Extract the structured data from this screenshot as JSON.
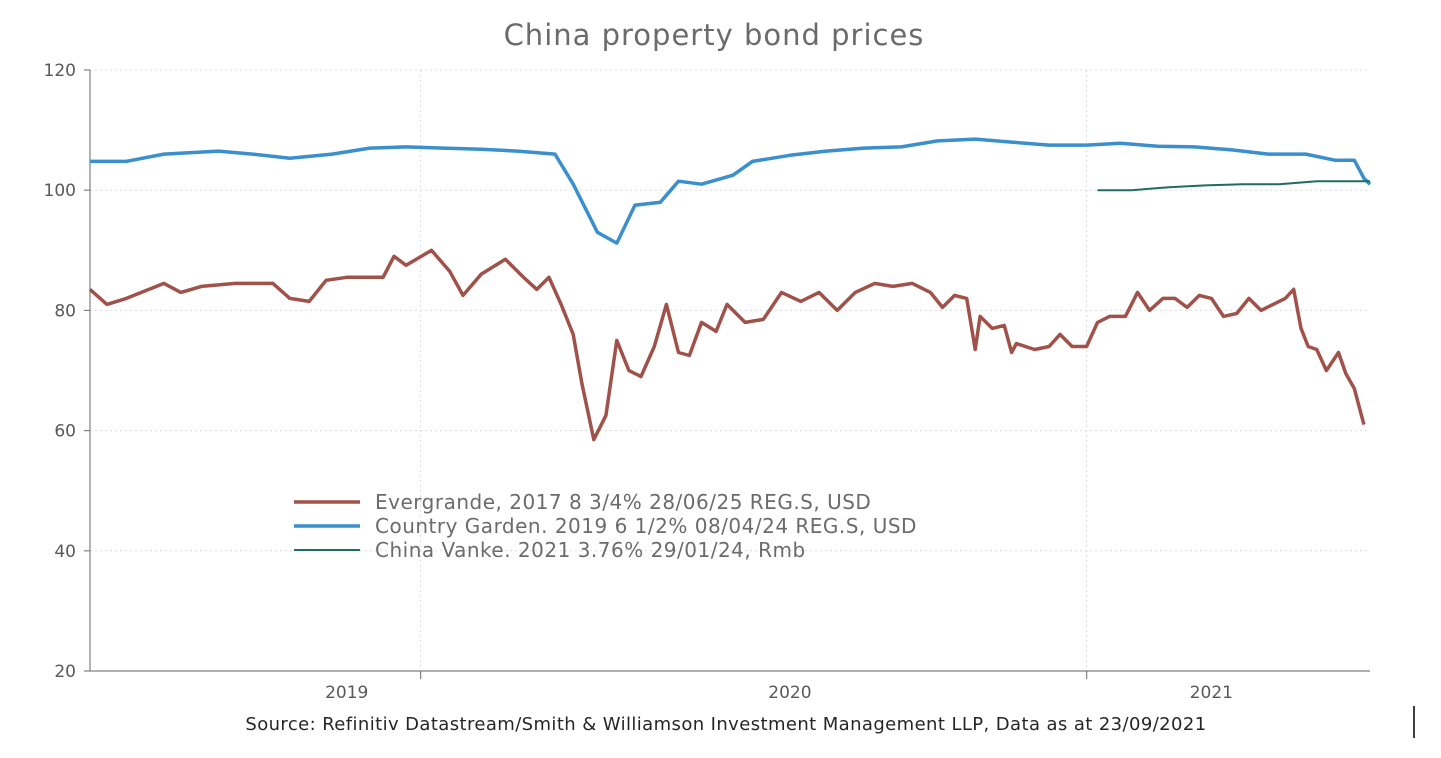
{
  "chart_data": {
    "type": "line",
    "title": "China property bond prices",
    "source": "Source: Refinitiv Datastream/Smith & Williamson Investment Management LLP, Data as at 23/09/2021",
    "xlabel": "",
    "ylabel": "",
    "ylim": [
      20,
      120
    ],
    "yticks": [
      20,
      40,
      60,
      80,
      100,
      120
    ],
    "xlim": [
      "2018-11-01",
      "2021-09-23"
    ],
    "xticks": [
      {
        "label": "2019",
        "date": "2019-06-01"
      },
      {
        "label": "2020",
        "date": "2020-06-01"
      },
      {
        "label": "2021",
        "date": "2021-05-15"
      }
    ],
    "grid": true,
    "legend_position": "center-left",
    "series": [
      {
        "name": "Evergrande, 2017 8 3/4% 28/06/25 REG.S, USD",
        "color": "#a0524a",
        "points": [
          [
            "2018-11-01",
            83.5
          ],
          [
            "2018-11-15",
            81
          ],
          [
            "2018-12-01",
            82
          ],
          [
            "2019-01-01",
            84.5
          ],
          [
            "2019-01-15",
            83
          ],
          [
            "2019-02-01",
            84
          ],
          [
            "2019-03-01",
            84.5
          ],
          [
            "2019-04-01",
            84.5
          ],
          [
            "2019-04-15",
            82
          ],
          [
            "2019-05-01",
            81.5
          ],
          [
            "2019-05-15",
            85
          ],
          [
            "2019-06-01",
            85.5
          ],
          [
            "2019-07-01",
            85.5
          ],
          [
            "2019-07-10",
            89
          ],
          [
            "2019-07-20",
            87.5
          ],
          [
            "2019-08-10",
            90
          ],
          [
            "2019-08-25",
            86.5
          ],
          [
            "2019-09-05",
            82.5
          ],
          [
            "2019-09-20",
            86
          ],
          [
            "2019-10-10",
            88.5
          ],
          [
            "2019-10-25",
            85.5
          ],
          [
            "2019-11-05",
            83.5
          ],
          [
            "2019-11-15",
            85.5
          ],
          [
            "2019-11-25",
            81
          ],
          [
            "2019-12-05",
            76
          ],
          [
            "2019-12-12",
            68
          ],
          [
            "2019-12-22",
            58.5
          ],
          [
            "2020-01-01",
            62.5
          ],
          [
            "2020-01-10",
            75
          ],
          [
            "2020-01-20",
            70
          ],
          [
            "2020-01-30",
            69
          ],
          [
            "2020-02-10",
            74
          ],
          [
            "2020-02-20",
            81
          ],
          [
            "2020-03-01",
            73
          ],
          [
            "2020-03-10",
            72.5
          ],
          [
            "2020-03-20",
            78
          ],
          [
            "2020-04-01",
            76.5
          ],
          [
            "2020-04-10",
            81
          ],
          [
            "2020-04-25",
            78
          ],
          [
            "2020-05-10",
            78.5
          ],
          [
            "2020-05-25",
            83
          ],
          [
            "2020-06-10",
            81.5
          ],
          [
            "2020-06-25",
            83
          ],
          [
            "2020-07-10",
            80
          ],
          [
            "2020-07-25",
            83
          ],
          [
            "2020-08-10",
            84.5
          ],
          [
            "2020-08-25",
            84
          ],
          [
            "2020-09-10",
            84.5
          ],
          [
            "2020-09-25",
            83
          ],
          [
            "2020-10-05",
            80.5
          ],
          [
            "2020-10-15",
            82.5
          ],
          [
            "2020-10-25",
            82
          ],
          [
            "2020-11-01",
            73.5
          ],
          [
            "2020-11-05",
            79
          ],
          [
            "2020-11-15",
            77
          ],
          [
            "2020-11-25",
            77.5
          ],
          [
            "2020-12-01",
            73
          ],
          [
            "2020-12-05",
            74.5
          ],
          [
            "2020-12-20",
            73.5
          ],
          [
            "2021-01-01",
            74
          ],
          [
            "2021-01-10",
            76
          ],
          [
            "2021-01-20",
            74
          ],
          [
            "2021-02-01",
            74
          ],
          [
            "2021-02-10",
            78
          ],
          [
            "2021-02-20",
            79
          ],
          [
            "2021-03-05",
            79
          ],
          [
            "2021-03-15",
            83
          ],
          [
            "2021-03-25",
            80
          ],
          [
            "2021-04-05",
            82
          ],
          [
            "2021-04-15",
            82
          ],
          [
            "2021-04-25",
            80.5
          ],
          [
            "2021-05-05",
            82.5
          ],
          [
            "2021-05-15",
            82
          ],
          [
            "2021-05-25",
            79
          ],
          [
            "2021-06-05",
            79.5
          ],
          [
            "2021-06-15",
            82
          ],
          [
            "2021-06-25",
            80
          ],
          [
            "2021-07-05",
            81
          ],
          [
            "2021-07-15",
            82
          ],
          [
            "2021-07-22",
            83.5
          ],
          [
            "2021-07-28",
            77
          ],
          [
            "2021-08-03",
            74
          ],
          [
            "2021-08-10",
            73.5
          ],
          [
            "2021-08-18",
            70
          ],
          [
            "2021-08-28",
            73
          ],
          [
            "2021-09-03",
            69.5
          ],
          [
            "2021-09-10",
            67
          ],
          [
            "2021-09-18",
            61
          ]
        ]
      },
      {
        "name": "Country Garden. 2019 6 1/2% 08/04/24 REG.S, USD",
        "color": "#3a8fcc",
        "points": [
          [
            "2018-11-01",
            104.8
          ],
          [
            "2018-12-01",
            104.8
          ],
          [
            "2019-01-01",
            106
          ],
          [
            "2019-02-15",
            106.5
          ],
          [
            "2019-03-15",
            106
          ],
          [
            "2019-04-15",
            105.3
          ],
          [
            "2019-05-20",
            106
          ],
          [
            "2019-06-20",
            107
          ],
          [
            "2019-07-20",
            107.2
          ],
          [
            "2019-08-20",
            107
          ],
          [
            "2019-09-20",
            106.8
          ],
          [
            "2019-10-20",
            106.5
          ],
          [
            "2019-11-20",
            106
          ],
          [
            "2019-12-05",
            101
          ],
          [
            "2019-12-15",
            97
          ],
          [
            "2019-12-25",
            93
          ],
          [
            "2020-01-10",
            91.2
          ],
          [
            "2020-01-25",
            97.5
          ],
          [
            "2020-02-15",
            98
          ],
          [
            "2020-03-01",
            101.5
          ],
          [
            "2020-03-20",
            101
          ],
          [
            "2020-04-15",
            102.5
          ],
          [
            "2020-05-01",
            104.8
          ],
          [
            "2020-06-01",
            105.8
          ],
          [
            "2020-07-01",
            106.5
          ],
          [
            "2020-08-01",
            107
          ],
          [
            "2020-09-01",
            107.2
          ],
          [
            "2020-10-01",
            108.2
          ],
          [
            "2020-11-01",
            108.5
          ],
          [
            "2020-12-01",
            108
          ],
          [
            "2021-01-01",
            107.5
          ],
          [
            "2021-02-01",
            107.5
          ],
          [
            "2021-03-01",
            107.8
          ],
          [
            "2021-04-01",
            107.3
          ],
          [
            "2021-05-01",
            107.2
          ],
          [
            "2021-06-01",
            106.7
          ],
          [
            "2021-07-01",
            106
          ],
          [
            "2021-08-01",
            106
          ],
          [
            "2021-08-25",
            105
          ],
          [
            "2021-09-10",
            105
          ],
          [
            "2021-09-18",
            102
          ],
          [
            "2021-09-23",
            101
          ]
        ]
      },
      {
        "name": "China Vanke. 2021 3.76% 29/01/24, Rmb",
        "color": "#1d6e5c",
        "points": [
          [
            "2021-02-10",
            100
          ],
          [
            "2021-03-10",
            100
          ],
          [
            "2021-04-10",
            100.5
          ],
          [
            "2021-05-10",
            100.8
          ],
          [
            "2021-06-10",
            101
          ],
          [
            "2021-07-10",
            101
          ],
          [
            "2021-08-10",
            101.5
          ],
          [
            "2021-09-10",
            101.5
          ],
          [
            "2021-09-23",
            101.5
          ]
        ]
      }
    ]
  }
}
